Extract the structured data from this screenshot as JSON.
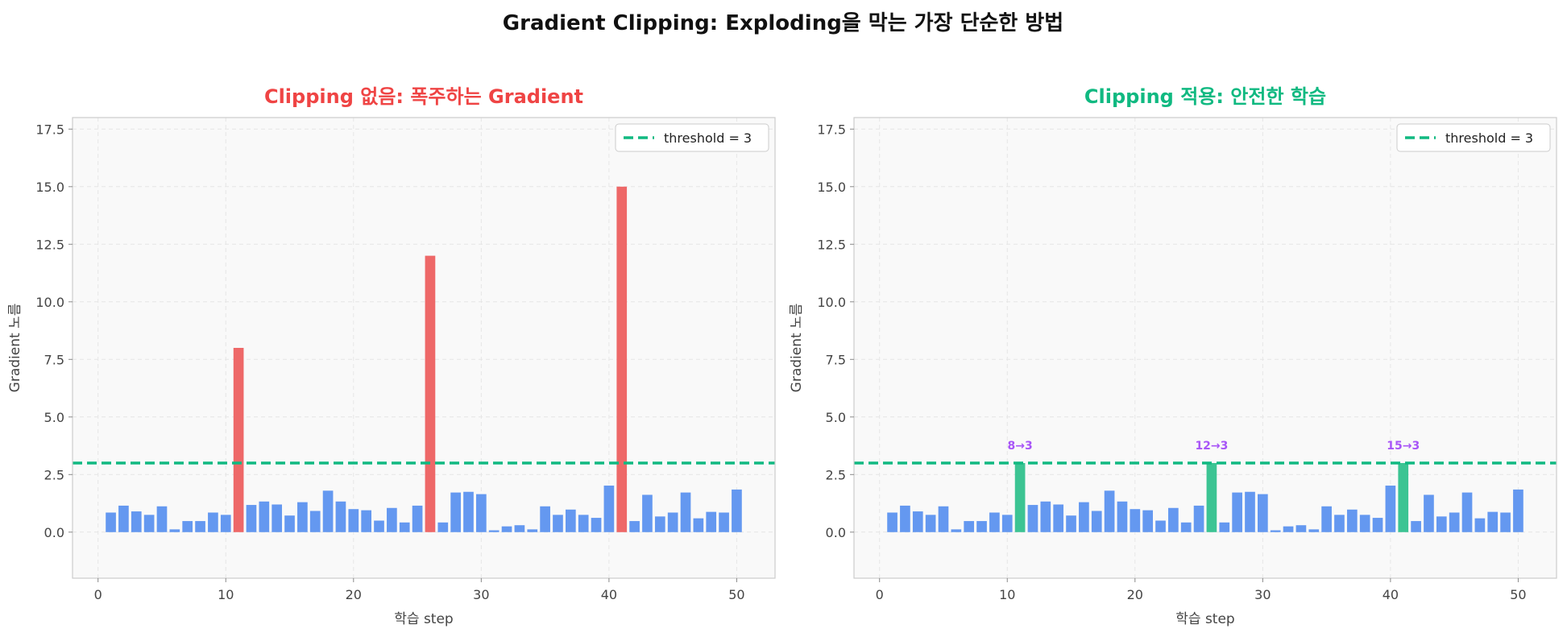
{
  "figure_title": "Gradient Clipping: Exploding을 막는 가장 단순한 방법",
  "colors": {
    "normal_bar": "#6498f0",
    "exploding_bar": "#ee6868",
    "clipped_bar": "#3cc493",
    "threshold": "#10b981",
    "annotation": "#a855f7",
    "left_title": "#ef4444",
    "right_title": "#10b981",
    "plot_bg": "#f9f9f9"
  },
  "chart_data": [
    {
      "type": "bar",
      "title": "Clipping 없음: 폭주하는 Gradient",
      "xlabel": "학습 step",
      "ylabel": "Gradient 노름",
      "xlim": [
        -2,
        53
      ],
      "ylim": [
        -2,
        18
      ],
      "xticks": [
        0,
        10,
        20,
        30,
        40,
        50
      ],
      "yticks": [
        0.0,
        2.5,
        5.0,
        7.5,
        10.0,
        12.5,
        15.0,
        17.5
      ],
      "grid": true,
      "legend": {
        "position": "top-right",
        "label": "threshold = 3"
      },
      "threshold": 3,
      "steps": [
        1,
        2,
        3,
        4,
        5,
        6,
        7,
        8,
        9,
        10,
        11,
        12,
        13,
        14,
        15,
        16,
        17,
        18,
        19,
        20,
        21,
        22,
        23,
        24,
        25,
        26,
        27,
        28,
        29,
        30,
        31,
        32,
        33,
        34,
        35,
        36,
        37,
        38,
        39,
        40,
        41,
        42,
        43,
        44,
        45,
        46,
        47,
        48,
        49,
        50
      ],
      "values": [
        0.85,
        1.15,
        0.9,
        0.75,
        1.12,
        0.12,
        0.48,
        0.48,
        0.85,
        0.75,
        8.0,
        1.18,
        1.33,
        1.2,
        0.72,
        1.3,
        0.92,
        1.8,
        1.33,
        1.0,
        0.95,
        0.5,
        1.05,
        0.42,
        1.15,
        12.0,
        0.42,
        1.72,
        1.75,
        1.65,
        0.08,
        0.25,
        0.3,
        0.12,
        1.12,
        0.75,
        0.98,
        0.75,
        0.62,
        2.02,
        15.0,
        0.48,
        1.62,
        0.68,
        0.85,
        1.72,
        0.6,
        0.88,
        0.85,
        1.85
      ],
      "highlighted_steps": [
        11,
        26,
        41
      ],
      "annotations": []
    },
    {
      "type": "bar",
      "title": "Clipping 적용: 안전한 학습",
      "xlabel": "학습 step",
      "ylabel": "Gradient 노름",
      "xlim": [
        -2,
        53
      ],
      "ylim": [
        -2,
        18
      ],
      "xticks": [
        0,
        10,
        20,
        30,
        40,
        50
      ],
      "yticks": [
        0.0,
        2.5,
        5.0,
        7.5,
        10.0,
        12.5,
        15.0,
        17.5
      ],
      "grid": true,
      "legend": {
        "position": "top-right",
        "label": "threshold = 3"
      },
      "threshold": 3,
      "steps": [
        1,
        2,
        3,
        4,
        5,
        6,
        7,
        8,
        9,
        10,
        11,
        12,
        13,
        14,
        15,
        16,
        17,
        18,
        19,
        20,
        21,
        22,
        23,
        24,
        25,
        26,
        27,
        28,
        29,
        30,
        31,
        32,
        33,
        34,
        35,
        36,
        37,
        38,
        39,
        40,
        41,
        42,
        43,
        44,
        45,
        46,
        47,
        48,
        49,
        50
      ],
      "values": [
        0.85,
        1.15,
        0.9,
        0.75,
        1.12,
        0.12,
        0.48,
        0.48,
        0.85,
        0.75,
        3.0,
        1.18,
        1.33,
        1.2,
        0.72,
        1.3,
        0.92,
        1.8,
        1.33,
        1.0,
        0.95,
        0.5,
        1.05,
        0.42,
        1.15,
        3.0,
        0.42,
        1.72,
        1.75,
        1.65,
        0.08,
        0.25,
        0.3,
        0.12,
        1.12,
        0.75,
        0.98,
        0.75,
        0.62,
        2.02,
        3.0,
        0.48,
        1.62,
        0.68,
        0.85,
        1.72,
        0.6,
        0.88,
        0.85,
        1.85
      ],
      "highlighted_steps": [
        11,
        26,
        41
      ],
      "annotations": [
        {
          "step": 11,
          "y": 3.6,
          "text": "8→3"
        },
        {
          "step": 26,
          "y": 3.6,
          "text": "12→3"
        },
        {
          "step": 41,
          "y": 3.6,
          "text": "15→3"
        }
      ]
    }
  ]
}
